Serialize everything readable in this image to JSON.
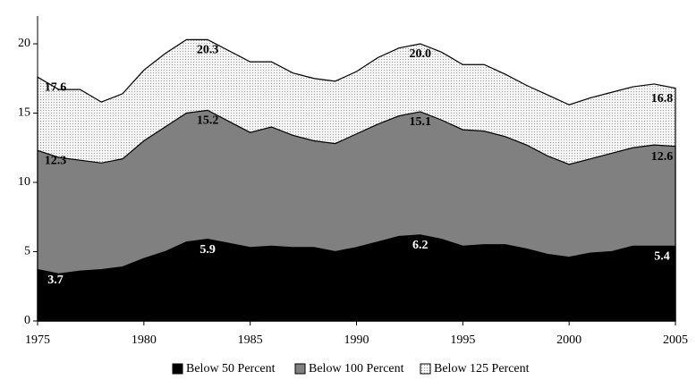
{
  "chart_data": {
    "type": "area",
    "x": [
      1975,
      1976,
      1977,
      1978,
      1979,
      1980,
      1981,
      1982,
      1983,
      1984,
      1985,
      1986,
      1987,
      1988,
      1989,
      1990,
      1991,
      1992,
      1993,
      1994,
      1995,
      1996,
      1997,
      1998,
      1999,
      2000,
      2001,
      2002,
      2003,
      2004,
      2005
    ],
    "series": [
      {
        "name": "Below 125 Percent",
        "color": "#eeeeee",
        "label_color": "#000000",
        "values": [
          17.6,
          16.7,
          16.7,
          15.8,
          16.4,
          18.1,
          19.3,
          20.3,
          20.3,
          19.5,
          18.7,
          18.7,
          17.9,
          17.5,
          17.3,
          18.0,
          19.0,
          19.7,
          20.0,
          19.4,
          18.5,
          18.5,
          17.8,
          17.0,
          16.3,
          15.6,
          16.1,
          16.5,
          16.9,
          17.1,
          16.8
        ],
        "value_labels": [
          "17.6",
          null,
          null,
          null,
          null,
          null,
          null,
          null,
          "20.3",
          null,
          null,
          null,
          null,
          null,
          null,
          null,
          null,
          null,
          "20.0",
          null,
          null,
          null,
          null,
          null,
          null,
          null,
          null,
          null,
          null,
          null,
          "16.8"
        ]
      },
      {
        "name": "Below 100 Percent",
        "color": "#808080",
        "label_color": "#000000",
        "values": [
          12.3,
          11.8,
          11.6,
          11.4,
          11.7,
          13.0,
          14.0,
          15.0,
          15.2,
          14.4,
          13.6,
          14.0,
          13.4,
          13.0,
          12.8,
          13.5,
          14.2,
          14.8,
          15.1,
          14.5,
          13.8,
          13.7,
          13.3,
          12.7,
          11.9,
          11.3,
          11.7,
          12.1,
          12.5,
          12.7,
          12.6
        ],
        "value_labels": [
          "12.3",
          null,
          null,
          null,
          null,
          null,
          null,
          null,
          "15.2",
          null,
          null,
          null,
          null,
          null,
          null,
          null,
          null,
          null,
          "15.1",
          null,
          null,
          null,
          null,
          null,
          null,
          null,
          null,
          null,
          null,
          null,
          "12.6"
        ]
      },
      {
        "name": "Below 50 Percent",
        "color": "#000000",
        "label_color": "#ffffff",
        "values": [
          3.7,
          3.4,
          3.6,
          3.7,
          3.9,
          4.5,
          5.0,
          5.7,
          5.9,
          5.6,
          5.3,
          5.4,
          5.3,
          5.3,
          5.0,
          5.3,
          5.7,
          6.1,
          6.2,
          5.9,
          5.4,
          5.5,
          5.5,
          5.2,
          4.8,
          4.6,
          4.9,
          5.0,
          5.4,
          5.4,
          5.4
        ],
        "value_labels": [
          "3.7",
          null,
          null,
          null,
          null,
          null,
          null,
          null,
          "5.9",
          null,
          null,
          null,
          null,
          null,
          null,
          null,
          null,
          null,
          "6.2",
          null,
          null,
          null,
          null,
          null,
          null,
          null,
          null,
          null,
          null,
          null,
          "5.4"
        ]
      }
    ],
    "xlim": [
      1975,
      2005
    ],
    "xticks": [
      1975,
      1980,
      1985,
      1990,
      1995,
      2000,
      2005
    ],
    "ylim": [
      0,
      22
    ],
    "yticks": [
      0,
      5,
      10,
      15,
      20
    ]
  }
}
